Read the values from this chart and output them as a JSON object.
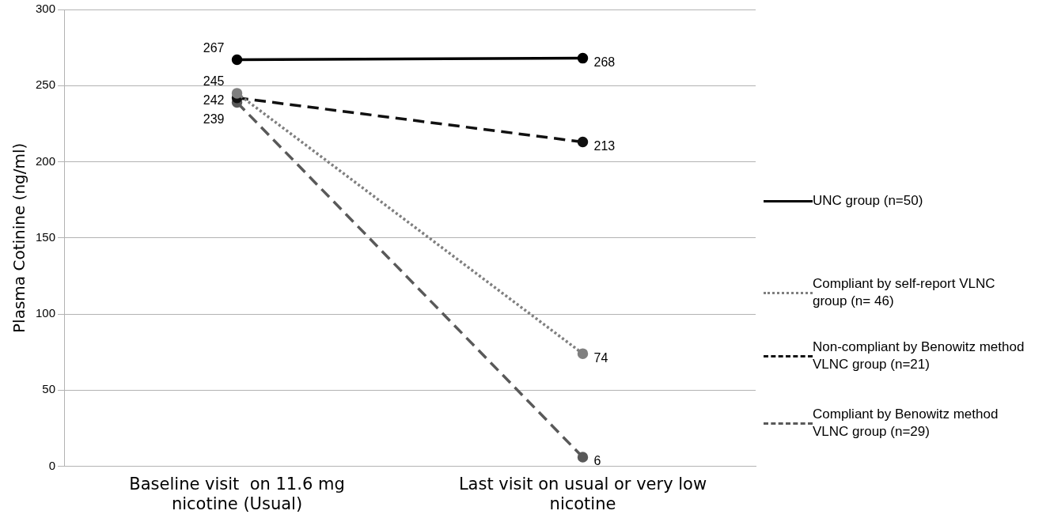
{
  "chart_data": {
    "type": "line",
    "ylabel": "Plasma Cotinine (ng/ml)",
    "categories": [
      "Baseline visit  on 11.6 mg nicotine (Usual)",
      "Last visit on usual or very low nicotine"
    ],
    "ylim": [
      0,
      300
    ],
    "yticks": [
      0,
      50,
      100,
      150,
      200,
      250,
      300
    ],
    "grid": "y",
    "legend": "right",
    "marker": "circle",
    "data_labels": true,
    "series": [
      {
        "name": "UNC group (n=50)",
        "color": "#000000",
        "line_style": "solid",
        "values": [
          267,
          268
        ]
      },
      {
        "name": "Compliant by self-report VLNC group (n= 46)",
        "color": "#7f7f7f",
        "line_style": "dotted",
        "values": [
          245,
          74
        ]
      },
      {
        "name": "Non-compliant by Benowitz method VLNC group (n=21)",
        "color": "#111111",
        "line_style": "dashed",
        "values": [
          242,
          213
        ]
      },
      {
        "name": "Compliant by Benowitz method VLNC group (n=29)",
        "color": "#595959",
        "line_style": "dashed",
        "values": [
          239,
          6
        ]
      }
    ]
  }
}
